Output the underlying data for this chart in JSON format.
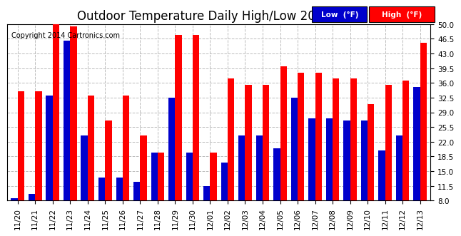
{
  "title": "Outdoor Temperature Daily High/Low 20141214",
  "copyright": "Copyright 2014 Cartronics.com",
  "legend_low": "Low  (°F)",
  "legend_high": "High  (°F)",
  "dates": [
    "11/20",
    "11/21",
    "11/22",
    "11/23",
    "11/24",
    "11/25",
    "11/26",
    "11/27",
    "11/28",
    "11/29",
    "11/30",
    "12/01",
    "12/02",
    "12/03",
    "12/04",
    "12/05",
    "12/06",
    "12/07",
    "12/08",
    "12/09",
    "12/10",
    "12/11",
    "12/12",
    "12/13"
  ],
  "high": [
    34.0,
    34.0,
    50.0,
    49.5,
    33.0,
    27.0,
    33.0,
    23.5,
    19.5,
    47.5,
    47.5,
    19.5,
    37.0,
    35.5,
    35.5,
    40.0,
    38.5,
    38.5,
    37.0,
    37.0,
    31.0,
    35.5,
    36.5,
    45.5
  ],
  "low": [
    8.5,
    9.5,
    33.0,
    46.0,
    23.5,
    13.5,
    13.5,
    12.5,
    19.5,
    32.5,
    19.5,
    11.5,
    17.0,
    23.5,
    23.5,
    20.5,
    32.5,
    27.5,
    27.5,
    27.0,
    27.0,
    20.0,
    23.5,
    35.0
  ],
  "bar_color_high": "#ff0000",
  "bar_color_low": "#0000cc",
  "background_color": "#ffffff",
  "grid_color": "#bbbbbb",
  "ylim_min": 8.0,
  "ylim_max": 50.0,
  "yticks": [
    8.0,
    11.5,
    15.0,
    18.5,
    22.0,
    25.5,
    29.0,
    32.5,
    36.0,
    39.5,
    43.0,
    46.5,
    50.0
  ],
  "title_fontsize": 12,
  "tick_fontsize": 7.5,
  "copyright_fontsize": 7
}
